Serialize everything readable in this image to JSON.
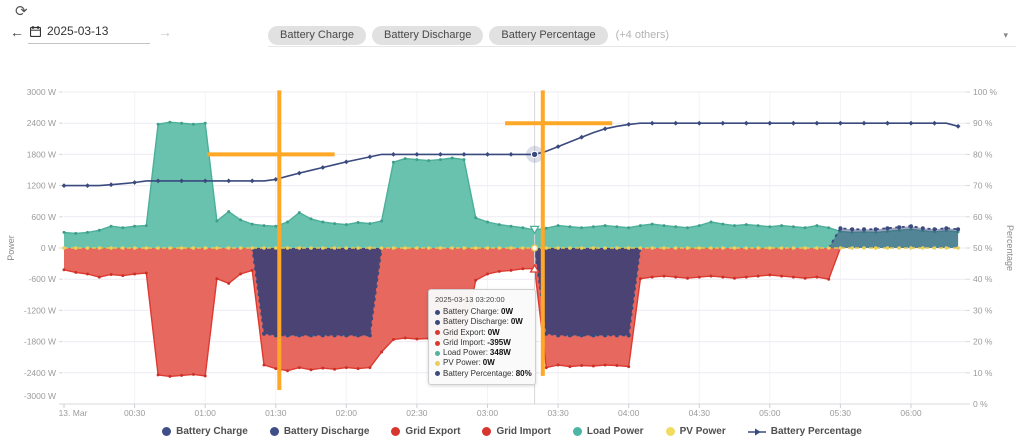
{
  "header": {
    "refresh_icon": "⟳",
    "prev_icon": "←",
    "next_icon": "→",
    "caret_icon": "▾",
    "date_value": "2025-03-13",
    "series_chips": [
      "Battery Charge",
      "Battery Discharge",
      "Battery Percentage"
    ],
    "others_label": "(+4 others)"
  },
  "chart_data": {
    "type": "area",
    "date": "2025-03-13",
    "sample_step_min": 5,
    "points": 77,
    "x_axis": {
      "tick_interval_min": 30,
      "tick_labels": [
        "13. Mar",
        "00:30",
        "01:00",
        "01:30",
        "02:00",
        "02:30",
        "03:00",
        "03:30",
        "04:00",
        "04:30",
        "05:00",
        "05:30",
        "06:00"
      ]
    },
    "y_left": {
      "title": "Power",
      "unit": "W",
      "min": -3000,
      "max": 3000,
      "tick_values": [
        3000,
        2400,
        1800,
        1200,
        600,
        0,
        -600,
        -1200,
        -1800,
        -2400,
        -3000
      ],
      "tick_labels": [
        "3000 W",
        "2400 W",
        "1800 W",
        "1200 W",
        "600 W",
        "0 W",
        "-600 W",
        "-1200 W",
        "-1800 W",
        "-2400 W",
        "-3000 W"
      ]
    },
    "y_right": {
      "title": "Percentage",
      "unit": "%",
      "min": 0,
      "max": 100,
      "tick_values": [
        100,
        90,
        80,
        70,
        60,
        50,
        40,
        30,
        20,
        10,
        0
      ],
      "tick_labels": [
        "100 %",
        "90 %",
        "80 %",
        "70 %",
        "60 %",
        "50 %",
        "40 %",
        "30 %",
        "20 %",
        "10 %",
        "0 %"
      ]
    },
    "series": [
      {
        "name": "Battery Charge",
        "type": "area",
        "axis": "power",
        "fill": "#4a4374",
        "edge": "#3b4a7e",
        "edge_style": "dashed-dots",
        "values": [
          0,
          0,
          0,
          0,
          0,
          0,
          0,
          0,
          0,
          0,
          0,
          0,
          0,
          0,
          0,
          0,
          0,
          -1650,
          -1680,
          -1680,
          -1680,
          -1680,
          -1680,
          -1680,
          -1680,
          -1680,
          -1680,
          0,
          0,
          0,
          0,
          0,
          0,
          0,
          0,
          0,
          0,
          0,
          0,
          0,
          0,
          -1650,
          -1680,
          -1680,
          -1680,
          -1680,
          -1680,
          -1680,
          -1680,
          0,
          0,
          0,
          0,
          0,
          0,
          0,
          0,
          0,
          0,
          0,
          0,
          0,
          0,
          0,
          0,
          0,
          0,
          0,
          0,
          0,
          0,
          0,
          0,
          0,
          0,
          0,
          0
        ]
      },
      {
        "name": "Battery Discharge",
        "type": "area",
        "axis": "power",
        "fill": "rgba(59,74,126,0.5)",
        "edge": "#3b4a7e",
        "edge_style": "dashed-dots",
        "values": [
          0,
          0,
          0,
          0,
          0,
          0,
          0,
          0,
          0,
          0,
          0,
          0,
          0,
          0,
          0,
          0,
          0,
          0,
          0,
          0,
          0,
          0,
          0,
          0,
          0,
          0,
          0,
          0,
          0,
          0,
          0,
          0,
          0,
          0,
          0,
          0,
          0,
          0,
          0,
          0,
          0,
          0,
          0,
          0,
          0,
          0,
          0,
          0,
          0,
          0,
          0,
          0,
          0,
          0,
          0,
          0,
          0,
          0,
          0,
          0,
          0,
          0,
          0,
          0,
          0,
          0,
          380,
          360,
          360,
          360,
          380,
          400,
          420,
          380,
          360,
          380,
          360
        ]
      },
      {
        "name": "Grid Export",
        "type": "area",
        "axis": "power",
        "fill": "#e7685f",
        "edge": "#dd3a31",
        "values_constant": 0
      },
      {
        "name": "Grid Import",
        "type": "area",
        "axis": "power",
        "fill": "#e7685f",
        "edge": "#dd3a31",
        "values": [
          -420,
          -470,
          -500,
          -560,
          -510,
          -530,
          -500,
          -480,
          -2440,
          -2470,
          -2450,
          -2430,
          -2460,
          -590,
          -680,
          -500,
          -430,
          -2250,
          -2320,
          -2360,
          -2300,
          -2340,
          -2310,
          -2330,
          -2300,
          -2320,
          -2300,
          -2000,
          -1760,
          -1730,
          -1750,
          -1740,
          -1750,
          -1760,
          -1750,
          -620,
          -500,
          -450,
          -430,
          -400,
          -395,
          -2300,
          -2250,
          -2280,
          -2260,
          -2270,
          -2250,
          -2260,
          -2280,
          -590,
          -560,
          -540,
          -560,
          -580,
          -560,
          -540,
          -560,
          -580,
          -560,
          -540,
          -520,
          -540,
          -560,
          -580,
          -560,
          -600,
          0,
          0,
          0,
          0,
          0,
          0,
          0,
          0,
          0,
          0,
          0
        ]
      },
      {
        "name": "Load Power",
        "type": "area",
        "axis": "power",
        "fill": "#68c2ae",
        "edge": "#4caf9a",
        "values": [
          300,
          280,
          300,
          340,
          420,
          390,
          420,
          430,
          2380,
          2420,
          2400,
          2380,
          2400,
          520,
          700,
          540,
          460,
          430,
          420,
          500,
          680,
          560,
          500,
          470,
          450,
          490,
          470,
          520,
          1650,
          1720,
          1700,
          1680,
          1700,
          1730,
          1700,
          580,
          500,
          450,
          420,
          390,
          348,
          380,
          430,
          410,
          390,
          410,
          430,
          410,
          390,
          430,
          460,
          430,
          410,
          390,
          430,
          500,
          460,
          430,
          450,
          430,
          410,
          430,
          410,
          390,
          430,
          390,
          320,
          300,
          310,
          300,
          320,
          340,
          360,
          330,
          310,
          330,
          310
        ]
      },
      {
        "name": "PV Power",
        "type": "dashed-line",
        "axis": "power",
        "fill": "#e9cf5e",
        "edge": "#e4c94f",
        "values_constant": 0
      },
      {
        "name": "Battery Percentage",
        "type": "line",
        "axis": "percent",
        "edge": "#3b4a7e",
        "values": [
          70,
          70,
          70,
          70,
          70.3,
          70.6,
          71,
          71.5,
          71.5,
          71.5,
          71.5,
          71.5,
          71.5,
          71.5,
          71.5,
          71.5,
          71.5,
          71.5,
          72,
          73,
          74,
          74.9,
          75.8,
          76.7,
          77.6,
          78.4,
          79.2,
          80,
          80,
          80,
          80,
          80,
          80,
          80,
          80,
          80,
          80,
          80,
          80,
          80,
          80,
          81,
          82.5,
          84,
          85.5,
          87,
          88.2,
          89,
          89.6,
          90,
          90,
          90,
          90,
          90,
          90,
          90,
          90,
          90,
          90,
          90,
          90,
          90,
          90,
          90,
          90,
          90,
          90,
          90,
          90,
          90,
          90,
          90,
          90,
          90,
          90,
          90,
          89
        ]
      }
    ],
    "annotations": {
      "crosshair_color": "#ffa726",
      "crosshairs": [
        {
          "name": "target-80",
          "time_min": 91.5,
          "level_percent": 80,
          "h_from_min": 61,
          "h_to_min": 115,
          "v_top_percent": 100.5,
          "v_bottom_percent": 4.5
        },
        {
          "name": "target-90",
          "time_min": 203.5,
          "level_percent": 90,
          "h_from_min": 187.5,
          "h_to_min": 233,
          "v_top_percent": 100.5,
          "v_bottom_percent": 9
        }
      ],
      "hover_indicator": {
        "time_min": 200,
        "battery_percentage": 80,
        "load_power_w": 348,
        "grid_import_w": -395
      }
    }
  },
  "tooltip": {
    "timestamp": "2025-03-13 03:20:00",
    "rows": [
      {
        "label": "Battery Charge",
        "value": "0W",
        "color": "#3b4a7e"
      },
      {
        "label": "Battery Discharge",
        "value": "0W",
        "color": "#3b4a7e"
      },
      {
        "label": "Grid Export",
        "value": "0W",
        "color": "#dc382e"
      },
      {
        "label": "Grid Import",
        "value": "-395W",
        "color": "#dc382e"
      },
      {
        "label": "Load Power",
        "value": "348W",
        "color": "#54b19d"
      },
      {
        "label": "PV Power",
        "value": "0W",
        "color": "#e9cf5e"
      },
      {
        "label": "Battery Percentage",
        "value": "80%",
        "color": "#3b4a7e"
      }
    ]
  },
  "legend": {
    "items": [
      {
        "label": "Battery Charge",
        "marker": "circle",
        "color": "#3f4e87"
      },
      {
        "label": "Battery Discharge",
        "marker": "circle",
        "color": "#3f4e87"
      },
      {
        "label": "Grid Export",
        "marker": "circle",
        "color": "#d7352f"
      },
      {
        "label": "Grid Import",
        "marker": "circle",
        "color": "#d7352f"
      },
      {
        "label": "Load Power",
        "marker": "circle",
        "color": "#4db6a2"
      },
      {
        "label": "PV Power",
        "marker": "circle",
        "color": "#f0dc5f"
      },
      {
        "label": "Battery Percentage",
        "marker": "arrow-line",
        "color": "#3b4a7e"
      }
    ]
  }
}
